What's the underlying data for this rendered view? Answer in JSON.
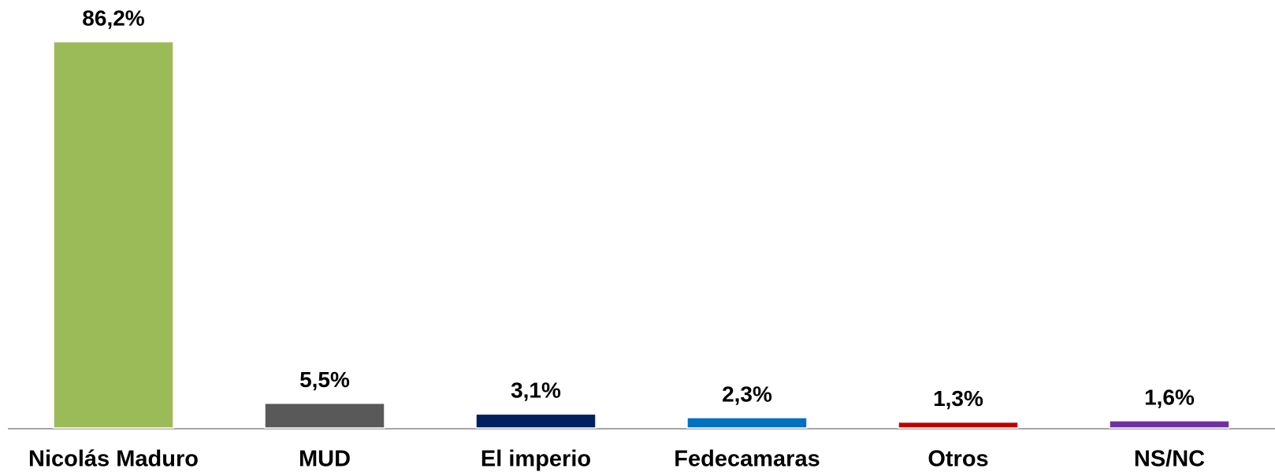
{
  "chart_data": {
    "type": "bar",
    "categories": [
      "Nicolás Maduro",
      "MUD",
      "El imperio",
      "Fedecamaras",
      "Otros",
      "NS/NC"
    ],
    "values": [
      86.2,
      5.5,
      3.1,
      2.3,
      1.3,
      1.6
    ],
    "value_labels": [
      "86,2%",
      "5,5%",
      "3,1%",
      "2,3%",
      "1,3%",
      "1,6%"
    ],
    "colors": [
      "#9bbb59",
      "#595959",
      "#002060",
      "#0070c0",
      "#c00000",
      "#7030a0"
    ]
  }
}
